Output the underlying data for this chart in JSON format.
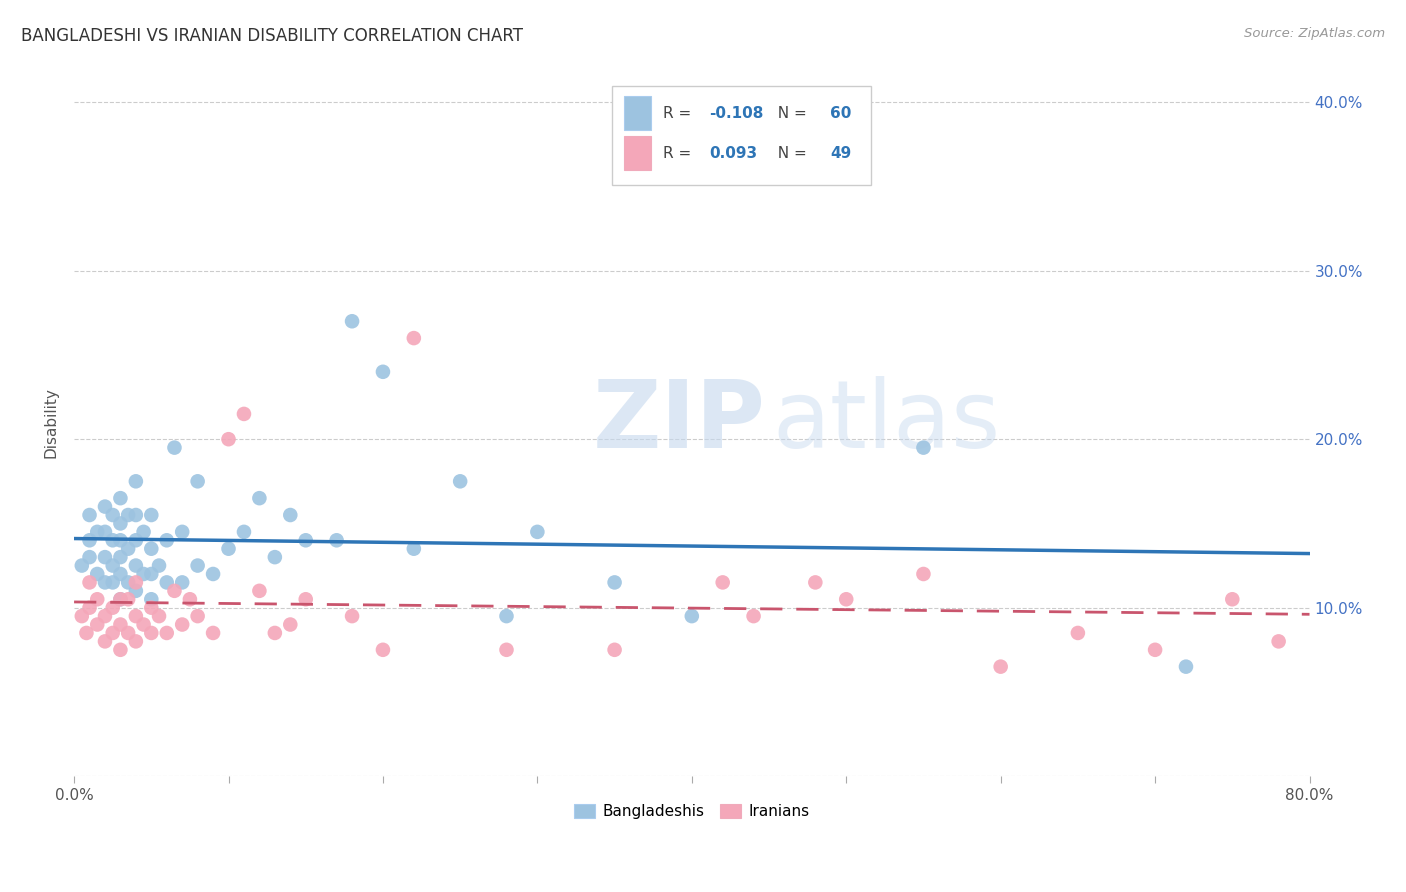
{
  "title": "BANGLADESHI VS IRANIAN DISABILITY CORRELATION CHART",
  "source": "Source: ZipAtlas.com",
  "ylabel": "Disability",
  "xlim": [
    0.0,
    0.8
  ],
  "ylim": [
    0.0,
    0.42
  ],
  "yticks": [
    0.0,
    0.1,
    0.2,
    0.3,
    0.4
  ],
  "ytick_labels_right": [
    "",
    "10.0%",
    "20.0%",
    "30.0%",
    "40.0%"
  ],
  "xticks": [
    0.0,
    0.1,
    0.2,
    0.3,
    0.4,
    0.5,
    0.6,
    0.7,
    0.8
  ],
  "xtick_labels": [
    "0.0%",
    "",
    "",
    "",
    "",
    "",
    "",
    "",
    "80.0%"
  ],
  "blue_R": -0.108,
  "blue_N": 60,
  "pink_R": 0.093,
  "pink_N": 49,
  "blue_color": "#9dc3e0",
  "pink_color": "#f4a7b9",
  "blue_line_color": "#2e75b6",
  "pink_line_color": "#c9556d",
  "watermark_zip": "ZIP",
  "watermark_atlas": "atlas",
  "blue_scatter_x": [
    0.005,
    0.01,
    0.01,
    0.01,
    0.015,
    0.015,
    0.02,
    0.02,
    0.02,
    0.02,
    0.025,
    0.025,
    0.025,
    0.025,
    0.03,
    0.03,
    0.03,
    0.03,
    0.03,
    0.03,
    0.035,
    0.035,
    0.035,
    0.04,
    0.04,
    0.04,
    0.04,
    0.04,
    0.045,
    0.045,
    0.05,
    0.05,
    0.05,
    0.05,
    0.055,
    0.06,
    0.06,
    0.065,
    0.07,
    0.07,
    0.08,
    0.08,
    0.09,
    0.1,
    0.11,
    0.12,
    0.13,
    0.14,
    0.15,
    0.17,
    0.18,
    0.2,
    0.22,
    0.25,
    0.28,
    0.3,
    0.35,
    0.4,
    0.55,
    0.72
  ],
  "blue_scatter_y": [
    0.125,
    0.13,
    0.14,
    0.155,
    0.12,
    0.145,
    0.115,
    0.13,
    0.145,
    0.16,
    0.115,
    0.125,
    0.14,
    0.155,
    0.105,
    0.12,
    0.13,
    0.14,
    0.15,
    0.165,
    0.115,
    0.135,
    0.155,
    0.11,
    0.125,
    0.14,
    0.155,
    0.175,
    0.12,
    0.145,
    0.105,
    0.12,
    0.135,
    0.155,
    0.125,
    0.115,
    0.14,
    0.195,
    0.115,
    0.145,
    0.125,
    0.175,
    0.12,
    0.135,
    0.145,
    0.165,
    0.13,
    0.155,
    0.14,
    0.14,
    0.27,
    0.24,
    0.135,
    0.175,
    0.095,
    0.145,
    0.115,
    0.095,
    0.195,
    0.065
  ],
  "pink_scatter_x": [
    0.005,
    0.008,
    0.01,
    0.01,
    0.015,
    0.015,
    0.02,
    0.02,
    0.025,
    0.025,
    0.03,
    0.03,
    0.03,
    0.035,
    0.035,
    0.04,
    0.04,
    0.04,
    0.045,
    0.05,
    0.05,
    0.055,
    0.06,
    0.065,
    0.07,
    0.075,
    0.08,
    0.09,
    0.1,
    0.11,
    0.12,
    0.13,
    0.14,
    0.15,
    0.18,
    0.2,
    0.22,
    0.28,
    0.35,
    0.42,
    0.44,
    0.48,
    0.5,
    0.55,
    0.6,
    0.65,
    0.7,
    0.75,
    0.78
  ],
  "pink_scatter_y": [
    0.095,
    0.085,
    0.1,
    0.115,
    0.09,
    0.105,
    0.08,
    0.095,
    0.085,
    0.1,
    0.075,
    0.09,
    0.105,
    0.085,
    0.105,
    0.08,
    0.095,
    0.115,
    0.09,
    0.085,
    0.1,
    0.095,
    0.085,
    0.11,
    0.09,
    0.105,
    0.095,
    0.085,
    0.2,
    0.215,
    0.11,
    0.085,
    0.09,
    0.105,
    0.095,
    0.075,
    0.26,
    0.075,
    0.075,
    0.115,
    0.095,
    0.115,
    0.105,
    0.12,
    0.065,
    0.085,
    0.075,
    0.105,
    0.08
  ]
}
